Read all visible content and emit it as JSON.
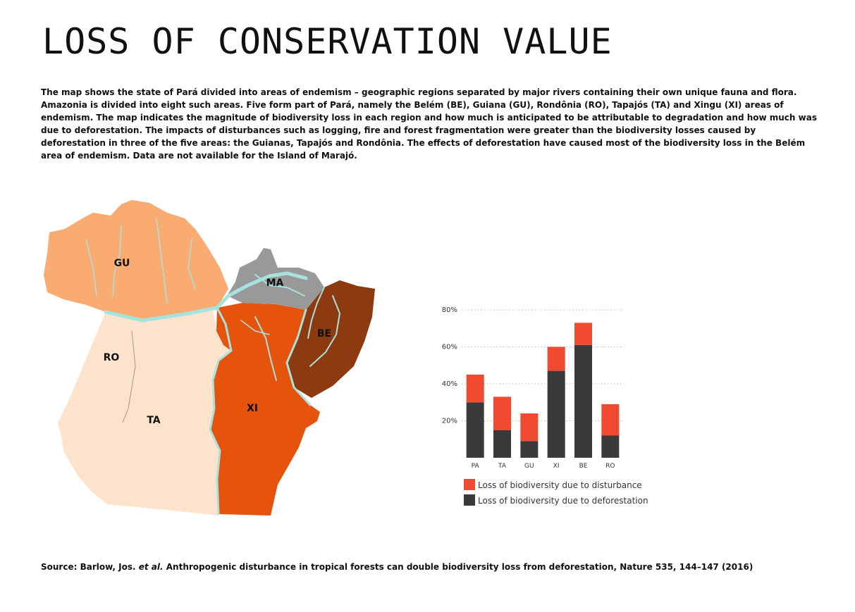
{
  "title": "LOSS OF CONSERVATION VALUE",
  "description": "The map shows the state of Pará divided into areas of endemism – geographic regions separated by major rivers containing their own unique fauna and flora. Amazonia is divided into eight such areas. Five form part of Pará, namely the Belém (BE), Guiana (GU), Rondônia (RO), Tapajós (TA) and Xingu (XI) areas of endemism. The map indicates the magnitude of biodiversity loss in each region and how much is anticipated to be attributable to degradation and how much was due to deforestation. The impacts of disturbances such as logging, fire and forest fragmentation were greater than the biodiversity losses caused by deforestation in three of the five areas: the Guianas, Tapajós and Rondônia. The effects of deforestation have caused most of the biodiversity loss in the Belém area of endemism. Data are not available for the Island of Marajó.",
  "map": {
    "regions": [
      {
        "code": "GU",
        "color": "#f9ab72"
      },
      {
        "code": "MA",
        "color": "#999999"
      },
      {
        "code": "BE",
        "color": "#8e3a10"
      },
      {
        "code": "RO",
        "color": "#fde3cc"
      },
      {
        "code": "TA",
        "color": "#fde3cc"
      },
      {
        "code": "XI",
        "color": "#e5530c"
      }
    ],
    "river_color": "#a6e3de"
  },
  "chart_data": {
    "type": "bar",
    "stacked": true,
    "categories": [
      "PA",
      "TA",
      "GU",
      "XI",
      "BE",
      "RO"
    ],
    "series": [
      {
        "name": "Loss of biodiversity due to deforestation",
        "color": "#3a3a3a",
        "values": [
          30,
          15,
          9,
          47,
          61,
          12
        ]
      },
      {
        "name": "Loss of biodiversity due to disturbance",
        "color": "#f04a30",
        "values": [
          15,
          18,
          15,
          13,
          12,
          17
        ]
      }
    ],
    "yticks": [
      "20%",
      "40%",
      "60%",
      "80%"
    ],
    "ytick_values": [
      20,
      40,
      60,
      80
    ],
    "ylim": [
      0,
      80
    ],
    "grid": true,
    "legend": [
      {
        "label": "Loss of biodiversity due to disturbance",
        "color": "#f04a30"
      },
      {
        "label": "Loss of biodiversity due to deforestation",
        "color": "#3a3a3a"
      }
    ]
  },
  "source": {
    "prefix": "Source: Barlow, Jos. ",
    "italic": "et al.",
    "suffix": " Anthropogenic disturbance in tropical forests can double biodiversity loss from deforestation, Nature 535, 144–147 (2016)"
  }
}
